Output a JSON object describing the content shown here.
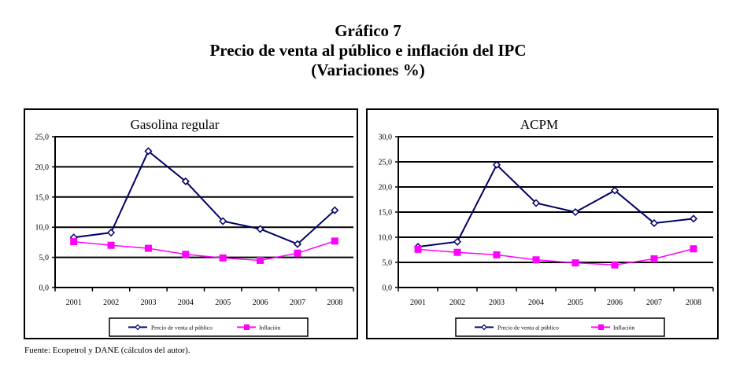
{
  "header": {
    "line1": "Gráfico 7",
    "line2": "Precio de venta al público e inflación del IPC",
    "line3": "(Variaciones %)"
  },
  "footer": {
    "source": "Fuente: Ecopetrol y DANE (cálculos del autor)."
  },
  "colors": {
    "precio": "#000066",
    "inflacion": "#ff00ff",
    "grid": "#000000"
  },
  "chart_data": [
    {
      "type": "line",
      "title": "Gasolina regular",
      "xlabel": "",
      "ylabel": "",
      "categories": [
        "2001",
        "2002",
        "2003",
        "2004",
        "2005",
        "2006",
        "2007",
        "2008"
      ],
      "ylim": [
        0,
        25
      ],
      "yticks": [
        "0,0",
        "5,0",
        "10,0",
        "15,0",
        "20,0",
        "25,0"
      ],
      "ytick_values": [
        0,
        5,
        10,
        15,
        20,
        25
      ],
      "grid": true,
      "legend_position": "bottom",
      "series": [
        {
          "name": "Precio de venta al público",
          "marker": "diamond",
          "values": [
            8.3,
            9.1,
            22.6,
            17.6,
            11.0,
            9.7,
            7.2,
            12.8
          ]
        },
        {
          "name": "Inflación",
          "marker": "square",
          "values": [
            7.6,
            7.0,
            6.5,
            5.5,
            4.9,
            4.5,
            5.7,
            7.7
          ]
        }
      ]
    },
    {
      "type": "line",
      "title": "ACPM",
      "xlabel": "",
      "ylabel": "",
      "categories": [
        "2001",
        "2002",
        "2003",
        "2004",
        "2005",
        "2006",
        "2007",
        "2008"
      ],
      "ylim": [
        0,
        30
      ],
      "yticks": [
        "0,0",
        "5,0",
        "10,0",
        "15,0",
        "20,0",
        "25,0",
        "30,0"
      ],
      "ytick_values": [
        0,
        5,
        10,
        15,
        20,
        25,
        30
      ],
      "grid": true,
      "legend_position": "bottom",
      "series": [
        {
          "name": "Precio de venta al público",
          "marker": "diamond",
          "values": [
            8.1,
            9.1,
            24.4,
            16.8,
            15.0,
            19.3,
            12.8,
            13.7
          ]
        },
        {
          "name": "Inflación",
          "marker": "square",
          "values": [
            7.6,
            7.0,
            6.5,
            5.5,
            4.9,
            4.5,
            5.7,
            7.7
          ]
        }
      ]
    }
  ]
}
